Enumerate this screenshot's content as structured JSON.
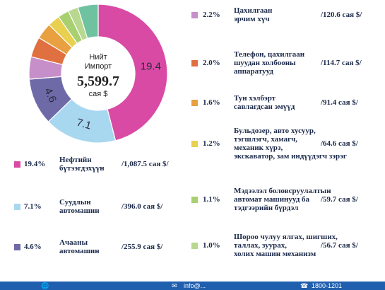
{
  "center": {
    "title_line1": "Нийт",
    "title_line2": "Импорт",
    "total": "5,599.7",
    "unit": "сая $"
  },
  "chart_data": {
    "type": "pie",
    "donut": true,
    "unit": "сая $",
    "slices": [
      {
        "name": "Нефтийн бүтээгдэхүүн",
        "name_lines": [
          "Нефтийн",
          "бүтээгдэхүүн"
        ],
        "percent": 19.4,
        "percent_label": "19.4%",
        "value": 1087.5,
        "value_label": "/1,087.5 сая $/",
        "slice_label": "19.4",
        "color": "#d94aa5"
      },
      {
        "name": "Суудлын автомашин",
        "name_lines": [
          "Суудлын",
          "автомашин"
        ],
        "percent": 7.1,
        "percent_label": "7.1%",
        "value": 396.0,
        "value_label": "/396.0 сая $/",
        "slice_label": "7.1",
        "color": "#a8d8f0"
      },
      {
        "name": "Ачааны автомашин",
        "name_lines": [
          "Ачааны",
          "автомашин"
        ],
        "percent": 4.6,
        "percent_label": "4.6%",
        "value": 255.9,
        "value_label": "/255.9 сая $/",
        "slice_label": "4.6",
        "color": "#6e6aa8"
      },
      {
        "name": "Цахилгаан эрчим хүч",
        "name_lines": [
          "Цахилгаан",
          "эрчим хүч"
        ],
        "percent": 2.2,
        "percent_label": "2.2%",
        "value": 120.6,
        "value_label": "/120.6 сая $/",
        "color": "#c78fca"
      },
      {
        "name": "Телефон, цахилгаан шуудан холбооны аппаратууд",
        "name_lines": [
          "Телефон, цахилгаан",
          "шуудан холбооны",
          "аппаратууд"
        ],
        "percent": 2.0,
        "percent_label": "2.0%",
        "value": 114.7,
        "value_label": "/114.7 сая $/",
        "color": "#e07040"
      },
      {
        "name": "Тун хэлбэрт савлагдсан эмүүд",
        "name_lines": [
          "Тун хэлбэрт",
          "савлагдсан эмүүд"
        ],
        "percent": 1.6,
        "percent_label": "1.6%",
        "value": 91.4,
        "value_label": "/91.4 сая $/",
        "color": "#e8a040"
      },
      {
        "name": "Бульдозер, авто хусуур, тэгшлэгч, хамагч, механик хүрз, экскаватор, зам индүүдэгч зэрэг",
        "name_lines": [
          "Бульдозер, авто хусуур,",
          "тэгшлэгч, хамагч,",
          "механик хүрз,",
          "экскаватор, зам индүүдэгч зэрэг"
        ],
        "percent": 1.2,
        "percent_label": "1.2%",
        "value": 64.6,
        "value_label": "/64.6 сая $/",
        "color": "#e8d050"
      },
      {
        "name": "Мэдээлэл боловсруулалтын автомат машинууд ба тэдгээрийн бүрдэл",
        "name_lines": [
          "Мэдээлэл боловсруулалтын",
          "автомат машинууд ба",
          "тэдгээрийн бүрдэл"
        ],
        "percent": 1.1,
        "percent_label": "1.1%",
        "value": 59.7,
        "value_label": "/59.7 сая $/",
        "color": "#a8d070"
      },
      {
        "name": "Шороо чулуу ялгах, шигших, таллах, зуурах, холих машин механизм",
        "name_lines": [
          "Шороо чулуу ялгах, шигших,",
          "таллах, зуурах,",
          "холих машин механизм"
        ],
        "percent": 1.0,
        "percent_label": "1.0%",
        "value": 56.7,
        "value_label": "/56.7 сая $/",
        "color": "#b8d890"
      }
    ],
    "other_slices": [
      {
        "percent": 2.0,
        "color": "#6fc2a0"
      }
    ]
  },
  "footer": {
    "web_text": "",
    "email_text": "info@...",
    "phone_text": "1800-1201"
  }
}
